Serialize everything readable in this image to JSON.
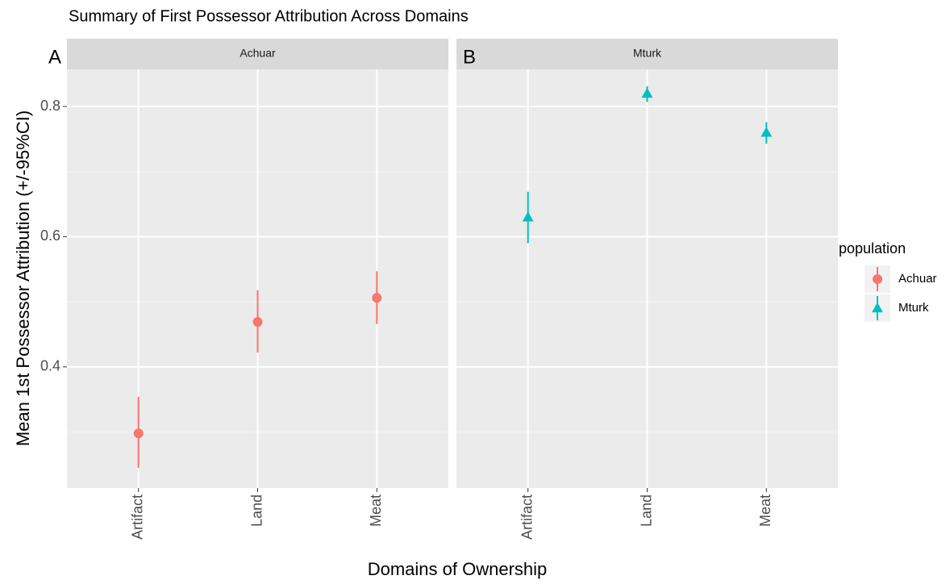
{
  "chart_data": {
    "type": "pointrange",
    "title": "Summary of First Possessor Attribution Across Domains",
    "x_label": "Domains of Ownership",
    "y_label": "Mean 1st Possessor Attribution (+/-95%CI)",
    "categories": [
      "Artifact",
      "Land",
      "Meat"
    ],
    "ylim": [
      0.214,
      0.857
    ],
    "yticks": [
      0.4,
      0.6,
      0.8
    ],
    "y_minor_grid": [
      0.3,
      0.5,
      0.7
    ],
    "grid": true,
    "legend_title": "population",
    "legend_position": "right",
    "panels": [
      {
        "tag": "A",
        "title": "Achuar",
        "series": [
          {
            "name": "Achuar",
            "color": "#F8766D",
            "marker": "circle",
            "values": [
              0.298,
              0.469,
              0.506
            ],
            "lower": [
              0.245,
              0.422,
              0.466
            ],
            "upper": [
              0.354,
              0.518,
              0.547
            ]
          }
        ]
      },
      {
        "tag": "B",
        "title": "Mturk",
        "series": [
          {
            "name": "Mturk",
            "color": "#00BFC4",
            "marker": "triangle",
            "values": [
              0.63,
              0.82,
              0.76
            ],
            "lower": [
              0.59,
              0.807,
              0.743
            ],
            "upper": [
              0.669,
              0.831,
              0.776
            ]
          }
        ]
      }
    ]
  }
}
